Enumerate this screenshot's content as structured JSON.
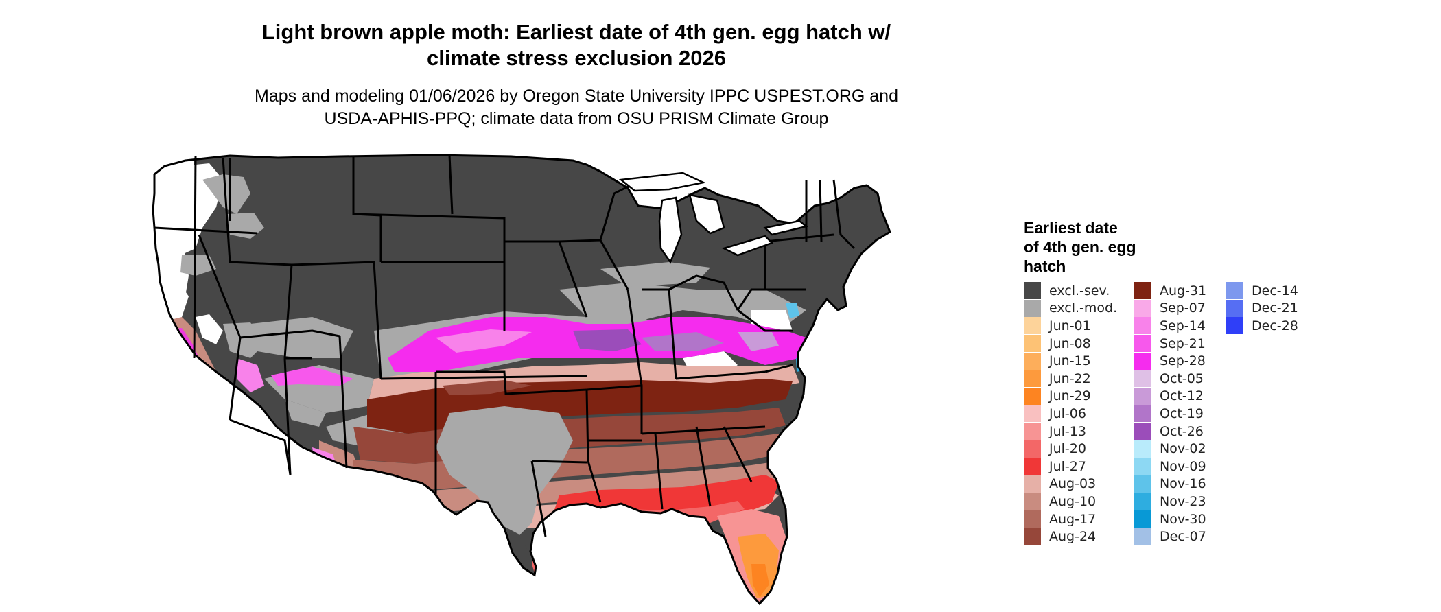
{
  "title_lines": [
    "Light brown apple moth: Earliest date of 4th gen. egg hatch w/",
    "climate stress exclusion 2026"
  ],
  "subtitle_lines": [
    "Maps and modeling 01/06/2026 by Oregon State University IPPC USPEST.ORG and",
    "USDA-APHIS-PPQ; climate data from OSU PRISM Climate Group"
  ],
  "legend": {
    "title_lines": [
      "Earliest date",
      "of 4th gen. egg",
      "hatch"
    ],
    "columns": [
      [
        {
          "label": "excl.-sev.",
          "color": "#474747"
        },
        {
          "label": "excl.-mod.",
          "color": "#a9a9a9"
        },
        {
          "label": "Jun-01",
          "color": "#fdd39a"
        },
        {
          "label": "Jun-08",
          "color": "#fdc275"
        },
        {
          "label": "Jun-15",
          "color": "#fdae5b"
        },
        {
          "label": "Jun-22",
          "color": "#fd9a3d"
        },
        {
          "label": "Jun-29",
          "color": "#fd8421"
        },
        {
          "label": "Jul-06",
          "color": "#f9c0c0"
        },
        {
          "label": "Jul-13",
          "color": "#f79494"
        },
        {
          "label": "Jul-20",
          "color": "#f36767"
        },
        {
          "label": "Jul-27",
          "color": "#f03737"
        },
        {
          "label": "Aug-03",
          "color": "#e6b0a7"
        },
        {
          "label": "Aug-10",
          "color": "#c98c80"
        },
        {
          "label": "Aug-17",
          "color": "#b06a5d"
        },
        {
          "label": "Aug-24",
          "color": "#96473a"
        }
      ],
      [
        {
          "label": "Aug-31",
          "color": "#7e2312"
        },
        {
          "label": "Sep-07",
          "color": "#f9a9e8"
        },
        {
          "label": "Sep-14",
          "color": "#f882ea"
        },
        {
          "label": "Sep-21",
          "color": "#f758ec"
        },
        {
          "label": "Sep-28",
          "color": "#f52cee"
        },
        {
          "label": "Oct-05",
          "color": "#dfc0e6"
        },
        {
          "label": "Oct-12",
          "color": "#c99ad8"
        },
        {
          "label": "Oct-19",
          "color": "#b175c9"
        },
        {
          "label": "Oct-26",
          "color": "#9b4dba"
        },
        {
          "label": "Nov-02",
          "color": "#b9ebfb"
        },
        {
          "label": "Nov-09",
          "color": "#8dd8f3"
        },
        {
          "label": "Nov-16",
          "color": "#5ec3ea"
        },
        {
          "label": "Nov-23",
          "color": "#2eade0"
        },
        {
          "label": "Nov-30",
          "color": "#0899d6"
        },
        {
          "label": "Dec-07",
          "color": "#a2c0e6"
        }
      ],
      [
        {
          "label": "Dec-14",
          "color": "#7d98ee"
        },
        {
          "label": "Dec-21",
          "color": "#566ef3"
        },
        {
          "label": "Dec-28",
          "color": "#2f3ff8"
        }
      ]
    ]
  }
}
